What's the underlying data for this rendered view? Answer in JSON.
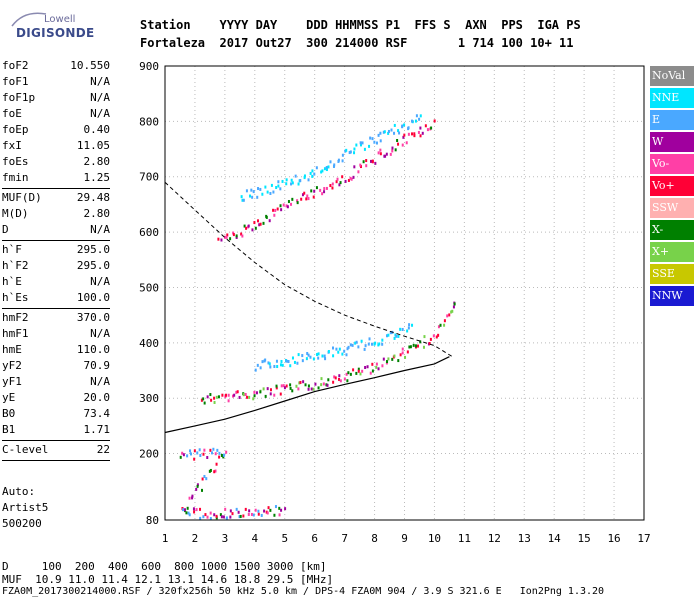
{
  "logo": {
    "top": "Lowell",
    "main": "DIGISONDE"
  },
  "header": {
    "labels": "Station    YYYY DAY    DDD HHMMSS P1  FFS S  AXN  PPS  IGA PS",
    "values": "Fortaleza  2017 Out27  300 214000 RSF       1 714 100 10+ 11"
  },
  "params": {
    "group1": [
      {
        "name": "foF2",
        "value": "10.550"
      },
      {
        "name": "foF1",
        "value": "N/A"
      },
      {
        "name": "foF1p",
        "value": "N/A"
      },
      {
        "name": "foE",
        "value": "N/A"
      },
      {
        "name": "foEp",
        "value": "0.40"
      },
      {
        "name": "fxI",
        "value": "11.05"
      },
      {
        "name": "foEs",
        "value": "2.80"
      },
      {
        "name": "fmin",
        "value": "1.25"
      }
    ],
    "group2": [
      {
        "name": "MUF(D)",
        "value": "29.48"
      },
      {
        "name": "M(D)",
        "value": "2.80"
      },
      {
        "name": "D",
        "value": "N/A"
      }
    ],
    "group3": [
      {
        "name": "h`F",
        "value": "295.0"
      },
      {
        "name": "h`F2",
        "value": "295.0"
      },
      {
        "name": "h`E",
        "value": "N/A"
      },
      {
        "name": "h`Es",
        "value": "100.0"
      }
    ],
    "group4": [
      {
        "name": "hmF2",
        "value": "370.0"
      },
      {
        "name": "hmF1",
        "value": "N/A"
      },
      {
        "name": "hmE",
        "value": "110.0"
      },
      {
        "name": "yF2",
        "value": "70.9"
      },
      {
        "name": "yF1",
        "value": "N/A"
      },
      {
        "name": "yE",
        "value": "20.0"
      },
      {
        "name": "B0",
        "value": "73.4"
      },
      {
        "name": "B1",
        "value": "1.71"
      }
    ],
    "group5": [
      {
        "name": "C-level",
        "value": "22"
      }
    ]
  },
  "auto": {
    "line1": "Auto:",
    "line2": "Artist5",
    "line3": "500200"
  },
  "legend": [
    {
      "label": "NoVal",
      "color": "#8c8c8c"
    },
    {
      "label": "NNE",
      "color": "#00e6ff"
    },
    {
      "label": "E",
      "color": "#4aa8ff"
    },
    {
      "label": "W",
      "color": "#a0009e"
    },
    {
      "label": "Vo-",
      "color": "#ff3fa6"
    },
    {
      "label": "Vo+",
      "color": "#ff0036"
    },
    {
      "label": "SSW",
      "color": "#ffb0b0"
    },
    {
      "label": "X-",
      "color": "#008000"
    },
    {
      "label": "X+",
      "color": "#78d24a"
    },
    {
      "label": "SSE",
      "color": "#c8c800"
    },
    {
      "label": "NNW",
      "color": "#1a1ad2"
    }
  ],
  "chart_data": {
    "type": "scatter",
    "xlim": [
      1,
      17
    ],
    "ylim": [
      80,
      900
    ],
    "x_ticks": [
      "1",
      "2",
      "3",
      "4",
      "5",
      "6",
      "7",
      "8",
      "9",
      "10",
      "11",
      "12",
      "13",
      "14",
      "15",
      "16",
      "17"
    ],
    "y_ticks": [
      "80",
      "200",
      "300",
      "400",
      "500",
      "600",
      "700",
      "800",
      "900"
    ],
    "grid": "dotted",
    "traces": [
      {
        "mode": "O-polarized F trace",
        "points": [
          [
            2.2,
            300
          ],
          [
            3,
            305
          ],
          [
            4,
            310
          ],
          [
            5,
            318
          ],
          [
            6,
            328
          ],
          [
            7,
            340
          ],
          [
            8,
            360
          ],
          [
            9,
            385
          ],
          [
            10,
            415
          ],
          [
            10.5,
            450
          ],
          [
            10.7,
            480
          ]
        ]
      },
      {
        "mode": "E-direction F trace",
        "points": [
          [
            4,
            360
          ],
          [
            5,
            368
          ],
          [
            6,
            378
          ],
          [
            7,
            390
          ],
          [
            8,
            405
          ],
          [
            8.8,
            420
          ],
          [
            9.3,
            432
          ]
        ]
      },
      {
        "mode": "second-hop trace",
        "points": [
          [
            2.8,
            585
          ],
          [
            4,
            615
          ],
          [
            5,
            650
          ],
          [
            6,
            675
          ],
          [
            7,
            700
          ],
          [
            8,
            735
          ],
          [
            9,
            770
          ],
          [
            10,
            800
          ]
        ]
      },
      {
        "mode": "E-direction upper trace",
        "points": [
          [
            3.5,
            665
          ],
          [
            5,
            690
          ],
          [
            6,
            710
          ],
          [
            7,
            740
          ],
          [
            8,
            770
          ],
          [
            9,
            795
          ],
          [
            9.6,
            810
          ]
        ]
      },
      {
        "mode": "sporadic-E band",
        "points": [
          [
            1.5,
            200
          ],
          [
            3,
            205
          ],
          [
            1.5,
            95
          ],
          [
            3,
            93
          ],
          [
            4,
            95
          ],
          [
            5,
            100
          ]
        ]
      }
    ],
    "profile_curve": [
      [
        1,
        238
      ],
      [
        2,
        250
      ],
      [
        3,
        262
      ],
      [
        4,
        278
      ],
      [
        5,
        295
      ],
      [
        6,
        312
      ],
      [
        7,
        325
      ],
      [
        8,
        337
      ],
      [
        9,
        350
      ],
      [
        10,
        362
      ],
      [
        10.5,
        375
      ]
    ],
    "profile_dashed": [
      [
        1,
        690
      ],
      [
        2,
        640
      ],
      [
        3,
        590
      ],
      [
        4,
        545
      ],
      [
        5,
        505
      ],
      [
        6,
        475
      ],
      [
        7,
        450
      ],
      [
        8,
        430
      ],
      [
        9,
        412
      ],
      [
        10,
        395
      ],
      [
        10.6,
        375
      ]
    ]
  },
  "bottom": {
    "row1": "D     100  200  400  600  800 1000 1500 3000 [km]",
    "row2": "MUF  10.9 11.0 11.4 12.1 13.1 14.6 18.8 29.5 [MHz]",
    "row3": "FZA0M_2017300214000.RSF / 320fx256h 50 kHz 5.0 km / DPS-4 FZA0M 904 / 3.9 S 321.6 E   Ion2Png 1.3.20"
  }
}
